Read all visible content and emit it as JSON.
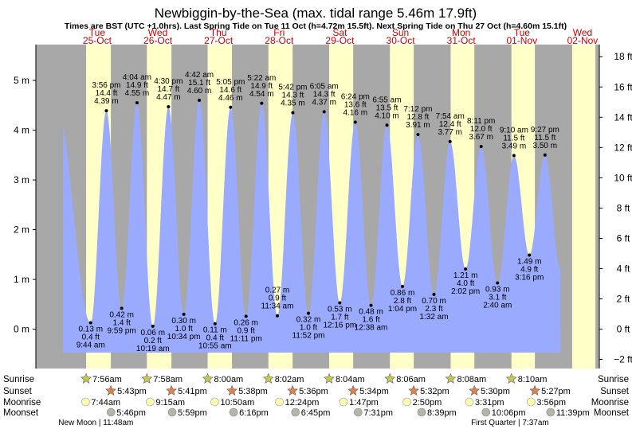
{
  "chart_data": {
    "type": "area",
    "title": "Newbiggin-by-the-Sea (max. tidal range 5.46m 17.9ft)",
    "subtitle": "Times are BST (UTC +1.0hrs). Last Spring Tide on Tue 11 Oct (h=4.72m 15.5ft). Next Spring Tide on Thu 27 Oct (h=4.60m 15.1ft)",
    "ylim_m": [
      -0.79,
      5.72
    ],
    "ylim_ft": [
      -2.6,
      18.8
    ],
    "left_ticks": [
      {
        "v": 0,
        "label": "0 m"
      },
      {
        "v": 1,
        "label": "1 m"
      },
      {
        "v": 2,
        "label": "2 m"
      },
      {
        "v": 3,
        "label": "3 m"
      },
      {
        "v": 4,
        "label": "4 m"
      },
      {
        "v": 5,
        "label": "5 m"
      }
    ],
    "right_ticks": [
      {
        "v": -2,
        "label": "−2 ft"
      },
      {
        "v": 0,
        "label": "0 ft"
      },
      {
        "v": 2,
        "label": "2 ft"
      },
      {
        "v": 4,
        "label": "4 ft"
      },
      {
        "v": 6,
        "label": "6 ft"
      },
      {
        "v": 8,
        "label": "8 ft"
      },
      {
        "v": 10,
        "label": "10 ft"
      },
      {
        "v": 12,
        "label": "12 ft"
      },
      {
        "v": 14,
        "label": "14 ft"
      },
      {
        "v": 16,
        "label": "16 ft"
      },
      {
        "v": 18,
        "label": "18 ft"
      }
    ],
    "days": [
      {
        "day": "Tue",
        "date": "25-Oct",
        "start": 0,
        "sunrise": 7.93,
        "sunset": 17.72
      },
      {
        "day": "Wed",
        "date": "26-Oct",
        "start": 24,
        "sunrise": 7.97,
        "sunset": 17.68
      },
      {
        "day": "Thu",
        "date": "27-Oct",
        "start": 48,
        "sunrise": 8.0,
        "sunset": 17.63
      },
      {
        "day": "Fri",
        "date": "28-Oct",
        "start": 72,
        "sunrise": 8.03,
        "sunset": 17.6
      },
      {
        "day": "Sat",
        "date": "29-Oct",
        "start": 96,
        "sunrise": 8.07,
        "sunset": 17.57
      },
      {
        "day": "Sun",
        "date": "30-Oct",
        "start": 120,
        "sunrise": 8.1,
        "sunset": 17.53
      },
      {
        "day": "Mon",
        "date": "31-Oct",
        "start": 144,
        "sunrise": 8.13,
        "sunset": 17.5
      },
      {
        "day": "Tue",
        "date": "01-Nov",
        "start": 168,
        "sunrise": 8.17,
        "sunset": 17.45
      },
      {
        "day": "Wed",
        "date": "02-Nov",
        "start": 192,
        "sunrise": 8.2,
        "sunset": 17.4
      }
    ],
    "tides": [
      {
        "t": -3.6,
        "h": 4.42
      },
      {
        "t": 9.73,
        "h": 0.13,
        "type": "low",
        "m": "0.13 m",
        "ft": "0.4 ft",
        "time": "9:44 am"
      },
      {
        "t": 15.93,
        "h": 4.39,
        "type": "high",
        "time": "3:56 pm",
        "ft": "14.4 ft",
        "m": "4.39 m"
      },
      {
        "t": 21.98,
        "h": 0.42,
        "type": "low",
        "m": "0.42 m",
        "ft": "1.4 ft",
        "time": "9:59 pm"
      },
      {
        "t": 28.07,
        "h": 4.55,
        "type": "high",
        "time": "4:04 am",
        "ft": "14.9 ft",
        "m": "4.55 m"
      },
      {
        "t": 34.32,
        "h": 0.06,
        "type": "low",
        "m": "0.06 m",
        "ft": "0.2 ft",
        "time": "10:19 am"
      },
      {
        "t": 40.5,
        "h": 4.47,
        "type": "high",
        "time": "4:30 pm",
        "ft": "14.7 ft",
        "m": "4.47 m"
      },
      {
        "t": 46.57,
        "h": 0.3,
        "type": "low",
        "m": "0.30 m",
        "ft": "1.0 ft",
        "time": "10:34 pm"
      },
      {
        "t": 52.7,
        "h": 4.6,
        "type": "high",
        "time": "4:42 am",
        "ft": "15.1 ft",
        "m": "4.60 m"
      },
      {
        "t": 58.92,
        "h": 0.11,
        "type": "low",
        "m": "0.11 m",
        "ft": "0.4 ft",
        "time": "10:55 am"
      },
      {
        "t": 65.08,
        "h": 4.46,
        "type": "high",
        "time": "5:05 pm",
        "ft": "14.6 ft",
        "m": "4.46 m"
      },
      {
        "t": 71.18,
        "h": 0.26,
        "type": "low",
        "m": "0.26 m",
        "ft": "0.9 ft",
        "time": "11:11 pm"
      },
      {
        "t": 77.37,
        "h": 4.54,
        "type": "high",
        "time": "5:22 am",
        "ft": "14.9 ft",
        "m": "4.54 m"
      },
      {
        "t": 83.57,
        "h": 0.27,
        "type": "low",
        "m": "0.27 m",
        "ft": "0.9 ft",
        "time": "11:34 am"
      },
      {
        "t": 89.7,
        "h": 4.35,
        "type": "high",
        "time": "5:42 pm",
        "ft": "14.3 ft",
        "m": "4.35 m"
      },
      {
        "t": 95.87,
        "h": 0.32,
        "type": "low",
        "m": "0.32 m",
        "ft": "1.0 ft",
        "time": "11:52 pm"
      },
      {
        "t": 102.08,
        "h": 4.37,
        "type": "high",
        "time": "6:05 am",
        "ft": "14.3 ft",
        "m": "4.37 m"
      },
      {
        "t": 108.27,
        "h": 0.53,
        "type": "low",
        "m": "0.53 m",
        "ft": "1.7 ft",
        "time": "12:16 pm"
      },
      {
        "t": 114.4,
        "h": 4.16,
        "type": "high",
        "time": "6:24 pm",
        "ft": "13.6 ft",
        "m": "4.16 m"
      },
      {
        "t": 120.63,
        "h": 0.48,
        "type": "low",
        "m": "0.48 m",
        "ft": "1.6 ft",
        "time": "12:38 am"
      },
      {
        "t": 126.92,
        "h": 4.1,
        "type": "high",
        "time": "6:55 am",
        "ft": "13.5 ft",
        "m": "4.10 m"
      },
      {
        "t": 133.07,
        "h": 0.86,
        "type": "low",
        "m": "0.86 m",
        "ft": "2.8 ft",
        "time": "1:04 pm"
      },
      {
        "t": 139.2,
        "h": 3.91,
        "type": "high",
        "time": "7:12 pm",
        "ft": "12.8 ft",
        "m": "3.91 m"
      },
      {
        "t": 145.53,
        "h": 0.7,
        "type": "low",
        "m": "0.70 m",
        "ft": "2.3 ft",
        "time": "1:32 am"
      },
      {
        "t": 151.9,
        "h": 3.77,
        "type": "high",
        "time": "7:54 am",
        "ft": "12.4 ft",
        "m": "3.77 m"
      },
      {
        "t": 158.03,
        "h": 1.21,
        "type": "low",
        "m": "1.21 m",
        "ft": "4.0 ft",
        "time": "2:02 pm"
      },
      {
        "t": 164.18,
        "h": 3.67,
        "type": "high",
        "time": "8:11 pm",
        "ft": "12.0 ft",
        "m": "3.67 m"
      },
      {
        "t": 170.67,
        "h": 0.93,
        "type": "low",
        "m": "0.93 m",
        "ft": "3.1 ft",
        "time": "2:40 am"
      },
      {
        "t": 177.17,
        "h": 3.49,
        "type": "high",
        "time": "9:10 am",
        "ft": "11.5 ft",
        "m": "3.49 m"
      },
      {
        "t": 183.27,
        "h": 1.49,
        "type": "low",
        "m": "1.49 m",
        "ft": "4.9 ft",
        "time": "3:16 pm"
      },
      {
        "t": 189.45,
        "h": 3.5,
        "type": "high",
        "time": "9:27 pm",
        "ft": "11.5 ft",
        "m": "3.50 m"
      },
      {
        "t": 195.6,
        "h": 1.2
      }
    ],
    "low_label_above": [
      6
    ],
    "sun_rows": {
      "sunrise": [
        "7:56am",
        "7:58am",
        "8:00am",
        "8:02am",
        "8:04am",
        "8:06am",
        "8:08am",
        "8:10am"
      ],
      "sunset": [
        "5:43pm",
        "5:41pm",
        "5:38pm",
        "5:36pm",
        "5:34pm",
        "5:32pm",
        "5:30pm",
        "5:27pm"
      ]
    },
    "moonrise": [
      {
        "t": 7.73,
        "label": "7:44am"
      },
      {
        "t": 33.25,
        "label": "9:15am"
      },
      {
        "t": 58.83,
        "label": "10:50am"
      },
      {
        "t": 84.4,
        "label": "12:24pm"
      },
      {
        "t": 109.78,
        "label": "1:47pm"
      },
      {
        "t": 134.83,
        "label": "2:50pm"
      },
      {
        "t": 159.52,
        "label": "3:31pm"
      },
      {
        "t": 183.93,
        "label": "3:56pm"
      }
    ],
    "moonset": [
      {
        "t": 17.77,
        "label": "5:46pm"
      },
      {
        "t": 41.98,
        "label": "5:59pm"
      },
      {
        "t": 66.27,
        "label": "6:16pm"
      },
      {
        "t": 90.75,
        "label": "6:45pm"
      },
      {
        "t": 115.52,
        "label": "7:31pm"
      },
      {
        "t": 140.65,
        "label": "8:39pm"
      },
      {
        "t": 166.1,
        "label": "10:06pm"
      },
      {
        "t": 191.65,
        "label": "11:39pm"
      }
    ],
    "row_labels": [
      "Sunrise",
      "Sunset",
      "Moonrise",
      "Moonset"
    ],
    "moon_phases": [
      {
        "t": 11.8,
        "label": "New Moon | 11:48am"
      },
      {
        "t": 175.6,
        "label": "First Quarter | 7:37am"
      }
    ],
    "colors": {
      "night": "#a8a8a8",
      "day": "#ffffc8",
      "water": "#99aaff",
      "day_label": "#cc0000",
      "sun_star": "#c8c84a",
      "sunset_star": "#e0804a",
      "moonrise": "#ffffb0",
      "moonset": "#b4b4a8"
    }
  }
}
